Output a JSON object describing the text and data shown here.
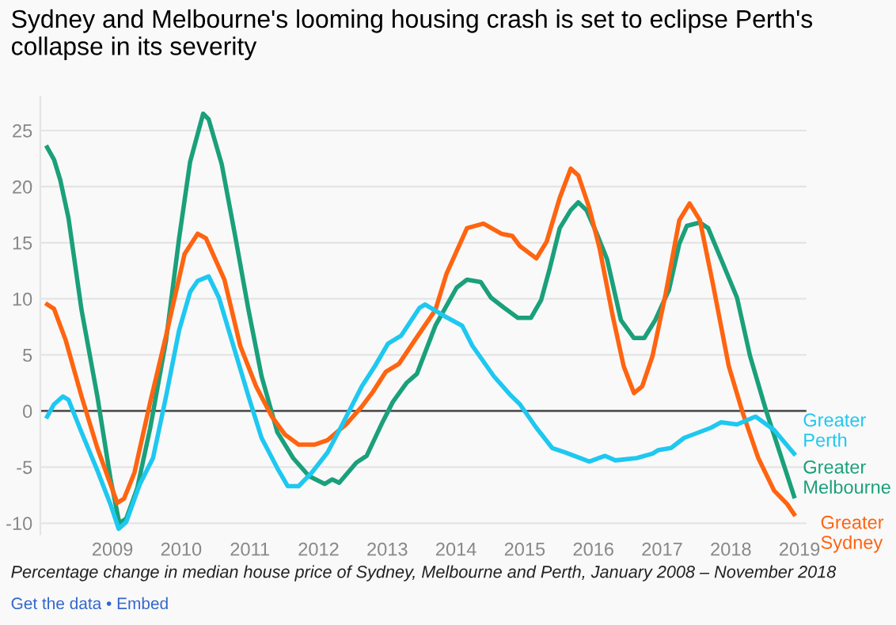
{
  "chart_data": {
    "type": "line",
    "title": "Sydney and Melbourne's looming housing crash is set to eclipse Perth's collapse in its severity",
    "annotations": [
      "Percentage change in median house price of Sydney, Melbourne and Perth, January 2008 – November 2018",
      "Get the data • Embed"
    ],
    "xlim": [
      2007.95,
      2019.1
    ],
    "xticks": [
      2009,
      2010,
      2011,
      2012,
      2013,
      2014,
      2015,
      2016,
      2017,
      2018,
      2019
    ],
    "ylim": [
      -11,
      28
    ],
    "yticks": [
      -10,
      -5,
      0,
      5,
      10,
      15,
      20,
      25
    ],
    "grid": "y",
    "legend": false,
    "marker": "none",
    "line_style": "solid",
    "ref_lines": [
      {
        "axis": "y",
        "value": 0,
        "label": null,
        "color": "#555555"
      }
    ],
    "series": [
      {
        "name": "Greater\nMelbourne",
        "color": "#1aa07a",
        "x": [
          2008.05,
          2008.15,
          2008.24,
          2008.36,
          2008.55,
          2008.78,
          2008.97,
          2009.1,
          2009.2,
          2009.36,
          2009.55,
          2009.78,
          2009.97,
          2010.13,
          2010.32,
          2010.4,
          2010.59,
          2010.78,
          2010.98,
          2011.17,
          2011.4,
          2011.63,
          2011.86,
          2012.09,
          2012.2,
          2012.3,
          2012.55,
          2012.7,
          2012.93,
          2013.08,
          2013.28,
          2013.43,
          2013.7,
          2014.01,
          2014.16,
          2014.36,
          2014.51,
          2014.7,
          2014.9,
          2015.09,
          2015.24,
          2015.36,
          2015.51,
          2015.67,
          2015.78,
          2015.9,
          2016.05,
          2016.2,
          2016.4,
          2016.59,
          2016.74,
          2016.9,
          2017.1,
          2017.25,
          2017.36,
          2017.55,
          2017.67,
          2017.86,
          2018.09,
          2018.28,
          2018.51,
          2018.92
        ],
        "values": [
          23.5,
          22.4,
          20.6,
          17.2,
          9,
          1.3,
          -6,
          -10,
          -9.6,
          -6.9,
          -1.5,
          6.3,
          15.4,
          22.2,
          26.5,
          26,
          22,
          15.8,
          9,
          3.1,
          -1.9,
          -4.2,
          -5.8,
          -6.5,
          -6.1,
          -6.4,
          -4.6,
          -4,
          -1,
          0.8,
          2.5,
          3.3,
          7.6,
          11,
          11.7,
          11.5,
          10.1,
          9.2,
          8.3,
          8.3,
          9.9,
          12.6,
          16.3,
          17.9,
          18.6,
          17.9,
          15.8,
          13.5,
          8.1,
          6.5,
          6.5,
          8.1,
          10.8,
          14.9,
          16.5,
          16.8,
          16.3,
          13.5,
          10.1,
          4.9,
          0.1,
          -7.6
        ]
      },
      {
        "name": "Greater\nSydney",
        "color": "#ff6410",
        "x": [
          2008.05,
          2008.15,
          2008.32,
          2008.55,
          2008.78,
          2009.07,
          2009.17,
          2009.32,
          2009.55,
          2009.78,
          2010.05,
          2010.24,
          2010.36,
          2010.63,
          2010.86,
          2011.09,
          2011.32,
          2011.51,
          2011.71,
          2011.94,
          2012.13,
          2012.4,
          2012.63,
          2012.79,
          2012.98,
          2013.17,
          2013.4,
          2013.7,
          2013.86,
          2014.16,
          2014.4,
          2014.66,
          2014.82,
          2014.93,
          2015.17,
          2015.32,
          2015.51,
          2015.67,
          2015.78,
          2015.94,
          2016.09,
          2016.28,
          2016.44,
          2016.59,
          2016.71,
          2016.86,
          2017.05,
          2017.25,
          2017.4,
          2017.55,
          2017.74,
          2017.97,
          2018.17,
          2018.4,
          2018.63,
          2018.82,
          2018.92
        ],
        "values": [
          9.5,
          9.1,
          6.3,
          1.3,
          -3.3,
          -8.2,
          -7.8,
          -5.5,
          0.8,
          6.7,
          14,
          15.8,
          15.4,
          11.7,
          5.8,
          2.2,
          -0.5,
          -2.1,
          -3,
          -3,
          -2.6,
          -1.2,
          0.4,
          1.7,
          3.5,
          4.2,
          6.3,
          9,
          12.2,
          16.3,
          16.7,
          15.8,
          15.6,
          14.7,
          13.6,
          15.1,
          19,
          21.6,
          21,
          18.1,
          14.5,
          8.5,
          4,
          1.6,
          2.2,
          4.9,
          10.4,
          17,
          18.5,
          17,
          11.3,
          4,
          -0.1,
          -4.2,
          -7.1,
          -8.3,
          -9.2
        ]
      },
      {
        "name": "Greater\nPerth",
        "color": "#1ec8f0",
        "x": [
          2008.05,
          2008.15,
          2008.28,
          2008.36,
          2008.55,
          2008.78,
          2008.97,
          2009.09,
          2009.2,
          2009.4,
          2009.59,
          2009.78,
          2009.97,
          2010.13,
          2010.24,
          2010.4,
          2010.55,
          2010.78,
          2010.98,
          2011.17,
          2011.4,
          2011.55,
          2011.71,
          2011.9,
          2012.13,
          2012.32,
          2012.63,
          2012.82,
          2013.01,
          2013.2,
          2013.47,
          2013.55,
          2013.82,
          2014.09,
          2014.24,
          2014.55,
          2014.78,
          2014.93,
          2015.17,
          2015.4,
          2015.59,
          2015.94,
          2016.17,
          2016.32,
          2016.63,
          2016.86,
          2016.94,
          2017.13,
          2017.32,
          2017.71,
          2017.86,
          2018.09,
          2018.36,
          2018.63,
          2018.92
        ],
        "values": [
          -0.5,
          0.6,
          1.3,
          1,
          -1.9,
          -5.3,
          -8.3,
          -10.5,
          -9.9,
          -6.5,
          -4.2,
          1.3,
          7.2,
          10.6,
          11.6,
          12,
          10.1,
          5.4,
          1.3,
          -2.4,
          -5.1,
          -6.7,
          -6.7,
          -5.5,
          -3.7,
          -1.5,
          2.2,
          4,
          6,
          6.7,
          9.2,
          9.5,
          8.5,
          7.6,
          5.8,
          3.1,
          1.5,
          0.6,
          -1.5,
          -3.3,
          -3.7,
          -4.5,
          -4,
          -4.4,
          -4.2,
          -3.8,
          -3.5,
          -3.3,
          -2.4,
          -1.5,
          -1,
          -1.2,
          -0.5,
          -1.7,
          -3.8
        ]
      }
    ]
  }
}
